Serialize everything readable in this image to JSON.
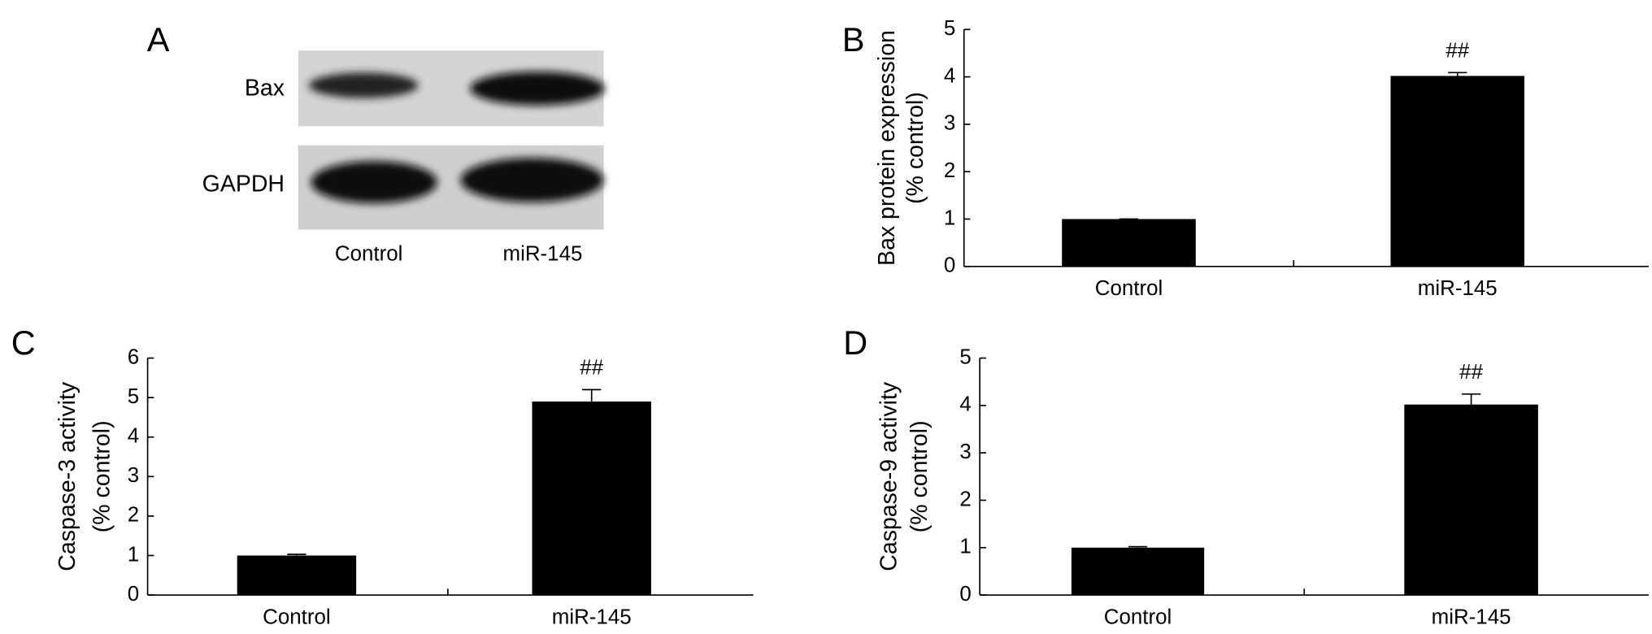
{
  "blot": {
    "panel_label": "A",
    "proteins": [
      "Bax",
      "GAPDH"
    ],
    "lanes": [
      "Control",
      "miR-145"
    ]
  },
  "chart_data": [
    {
      "type": "bar",
      "panel_label": "B",
      "ylabel": [
        "Bax protein expression",
        "(% control)"
      ],
      "categories": [
        "Control",
        "miR-145"
      ],
      "values": [
        1.0,
        4.02
      ],
      "errors": [
        0,
        0.07
      ],
      "annotations": [
        null,
        "##"
      ],
      "color": "#000000",
      "ylim": [
        0,
        5
      ],
      "yticks": [
        0,
        1,
        2,
        3,
        4,
        5
      ]
    },
    {
      "type": "bar",
      "panel_label": "C",
      "ylabel": [
        "Caspase-3 activity",
        "(% control)"
      ],
      "categories": [
        "Control",
        "miR-145"
      ],
      "values": [
        1.0,
        4.9
      ],
      "errors": [
        0.03,
        0.3
      ],
      "annotations": [
        null,
        "##"
      ],
      "color": "#000000",
      "ylim": [
        0,
        6
      ],
      "yticks": [
        0,
        1,
        2,
        3,
        4,
        5,
        6
      ]
    },
    {
      "type": "bar",
      "panel_label": "D",
      "ylabel": [
        "Caspase-9 activity",
        "(% control)"
      ],
      "categories": [
        "Control",
        "miR-145"
      ],
      "values": [
        1.0,
        4.02
      ],
      "errors": [
        0.02,
        0.22
      ],
      "annotations": [
        null,
        "##"
      ],
      "color": "#000000",
      "ylim": [
        0,
        5
      ],
      "yticks": [
        0,
        1,
        2,
        3,
        4,
        5
      ]
    }
  ]
}
